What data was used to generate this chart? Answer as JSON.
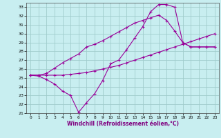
{
  "xlabel": "Windchill (Refroidissement éolien,°C)",
  "background_color": "#c8eef0",
  "grid_color": "#a0cccc",
  "line_color": "#990099",
  "xlim": [
    -0.5,
    23.5
  ],
  "ylim": [
    21,
    33.5
  ],
  "yticks": [
    21,
    22,
    23,
    24,
    25,
    26,
    27,
    28,
    29,
    30,
    31,
    32,
    33
  ],
  "xticks": [
    0,
    1,
    2,
    3,
    4,
    5,
    6,
    7,
    8,
    9,
    10,
    11,
    12,
    13,
    14,
    15,
    16,
    17,
    18,
    19,
    20,
    21,
    22,
    23
  ],
  "series1_x": [
    0,
    1,
    2,
    3,
    4,
    5,
    6,
    7,
    8,
    9,
    10,
    11,
    12,
    13,
    14,
    15,
    16,
    17,
    18,
    19,
    20,
    21,
    22,
    23
  ],
  "series1_y": [
    25.3,
    25.2,
    24.8,
    24.3,
    23.5,
    23.0,
    21.1,
    22.2,
    23.2,
    24.7,
    26.6,
    27.0,
    28.2,
    29.5,
    30.8,
    32.5,
    33.3,
    33.3,
    33.0,
    29.0,
    28.5,
    28.5,
    28.5,
    28.5
  ],
  "series2_x": [
    0,
    1,
    2,
    3,
    4,
    5,
    6,
    7,
    8,
    9,
    10,
    11,
    12,
    13,
    14,
    15,
    16,
    17,
    18,
    19,
    20,
    21,
    22,
    23
  ],
  "series2_y": [
    25.3,
    25.3,
    25.3,
    25.3,
    25.3,
    25.4,
    25.5,
    25.6,
    25.8,
    26.0,
    26.2,
    26.4,
    26.7,
    27.0,
    27.3,
    27.6,
    27.9,
    28.2,
    28.5,
    28.8,
    29.1,
    29.4,
    29.7,
    30.0
  ],
  "series3_x": [
    0,
    1,
    2,
    3,
    4,
    5,
    6,
    7,
    8,
    9,
    10,
    11,
    12,
    13,
    14,
    15,
    16,
    17,
    18,
    19,
    20,
    21,
    22,
    23
  ],
  "series3_y": [
    25.3,
    25.3,
    25.5,
    26.1,
    26.7,
    27.2,
    27.7,
    28.5,
    28.8,
    29.2,
    29.7,
    30.2,
    30.7,
    31.2,
    31.5,
    31.8,
    32.1,
    31.5,
    30.3,
    29.0,
    28.5,
    28.5,
    28.5,
    28.5
  ]
}
